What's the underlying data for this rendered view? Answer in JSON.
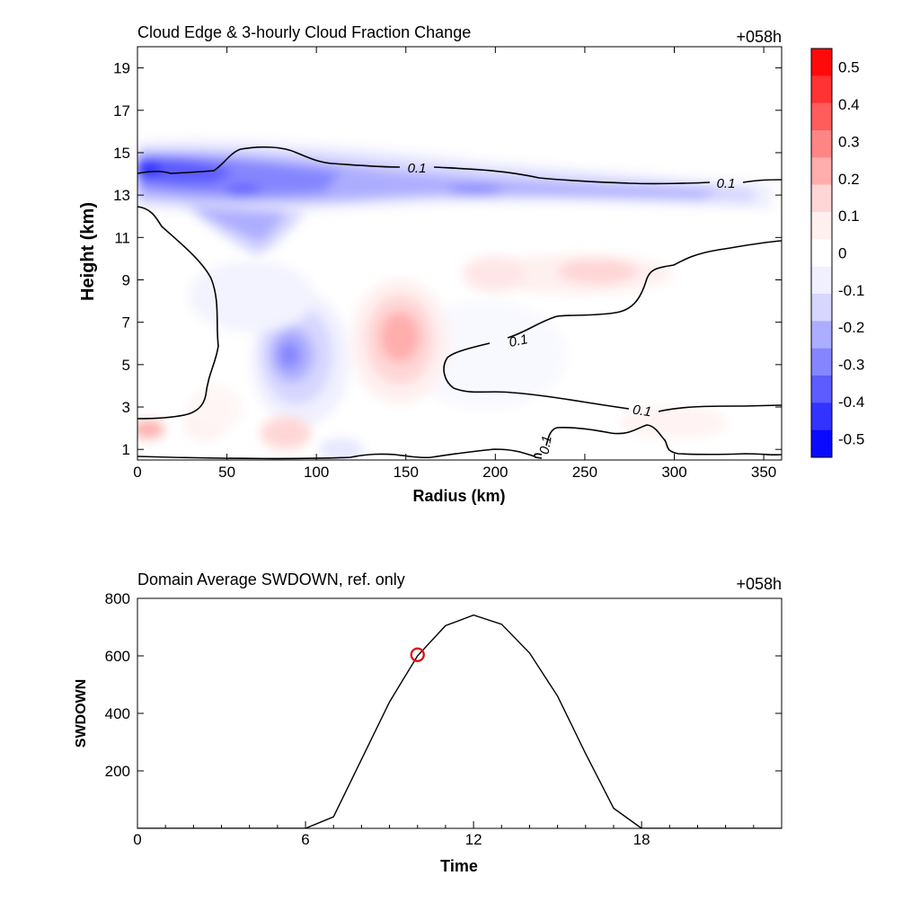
{
  "panels": {
    "top": {
      "title": "Cloud Edge & 3-hourly Cloud Fraction Change",
      "time_label": "+058h",
      "xlabel": "Radius (km)",
      "ylabel": "Height (km)",
      "xticks": [
        "0",
        "50",
        "100",
        "150",
        "200",
        "250",
        "300",
        "350"
      ],
      "yticks": [
        "1",
        "3",
        "5",
        "7",
        "9",
        "11",
        "13",
        "15",
        "17",
        "19"
      ],
      "contour_labels": [
        "0.1",
        "0.1",
        "0.1",
        "0.1",
        "0.1"
      ],
      "colorbar": {
        "labels": [
          "0.5",
          "0.4",
          "0.3",
          "0.2",
          "0.1",
          "0",
          "-0.1",
          "-0.2",
          "-0.3",
          "-0.4",
          "-0.5"
        ],
        "colors": [
          "#ff0a0a",
          "#ff3333",
          "#ff5c5c",
          "#ff8585",
          "#ffadad",
          "#ffd6d6",
          "#fff0f0",
          "#ffffff",
          "#f0f0ff",
          "#d6d6ff",
          "#adadff",
          "#8585ff",
          "#5c5cff",
          "#3333ff",
          "#0a0aff"
        ]
      }
    },
    "bottom": {
      "title": "Domain Average SWDOWN, ref. only",
      "time_label": "+058h",
      "xlabel": "Time",
      "ylabel": "SWDOWN",
      "xticks": [
        "0",
        "6",
        "12",
        "18"
      ],
      "yticks": [
        "200",
        "400",
        "600",
        "800"
      ]
    }
  },
  "chart_data": [
    {
      "type": "heatmap",
      "title": "Cloud Edge & 3-hourly Cloud Fraction Change",
      "annotation": "+058h",
      "xlabel": "Radius (km)",
      "ylabel": "Height (km)",
      "xlim": [
        0,
        360
      ],
      "ylim": [
        0.5,
        20
      ],
      "colorbar_range": [
        -0.55,
        0.55
      ],
      "colorbar_levels": [
        -0.5,
        -0.4,
        -0.3,
        -0.2,
        -0.1,
        0,
        0.1,
        0.2,
        0.3,
        0.4,
        0.5
      ],
      "contour_level": 0.1,
      "features": [
        {
          "kind": "negative",
          "x": [
            0,
            340
          ],
          "y": [
            12.3,
            15.3
          ],
          "peak": -0.45
        },
        {
          "kind": "negative",
          "x": [
            70,
            110
          ],
          "y": [
            3.5,
            7.5
          ],
          "peak": -0.25
        },
        {
          "kind": "positive",
          "x": [
            120,
            170
          ],
          "y": [
            4.5,
            8
          ],
          "peak": 0.18
        },
        {
          "kind": "positive",
          "x": [
            230,
            300
          ],
          "y": [
            8.5,
            10
          ],
          "peak": 0.08
        },
        {
          "kind": "positive",
          "x": [
            0,
            15
          ],
          "y": [
            1.5,
            2.5
          ],
          "peak": 0.15
        }
      ]
    },
    {
      "type": "line",
      "title": "Domain Average SWDOWN, ref. only",
      "annotation": "+058h",
      "xlabel": "Time",
      "ylabel": "SWDOWN",
      "xlim": [
        0,
        23
      ],
      "ylim": [
        0,
        800
      ],
      "x": [
        0,
        1,
        2,
        3,
        4,
        5,
        6,
        7,
        8,
        9,
        10,
        11,
        12,
        13,
        14,
        15,
        16,
        17,
        18,
        19,
        20,
        21,
        22,
        23
      ],
      "series": [
        {
          "values": [
            0,
            0,
            0,
            0,
            0,
            0,
            0,
            40,
            240,
            440,
            600,
            705,
            742,
            710,
            610,
            460,
            260,
            70,
            0,
            0,
            0,
            0,
            0,
            0
          ]
        }
      ],
      "marker": {
        "x": 10,
        "y": 604,
        "color": "#e00000"
      }
    }
  ]
}
